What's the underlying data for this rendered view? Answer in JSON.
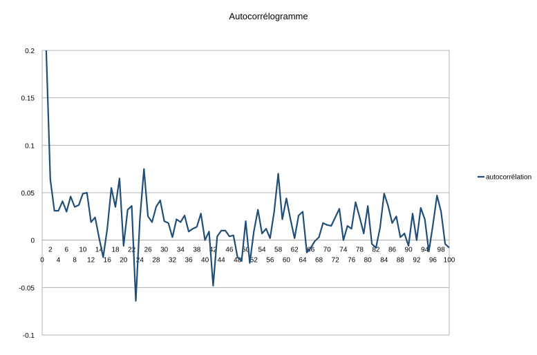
{
  "chart_data": {
    "type": "line",
    "title": "Autocorrélogramme",
    "xlabel": "",
    "ylabel": "",
    "ylim": [
      -0.1,
      0.2
    ],
    "xlim": [
      0,
      100
    ],
    "grid": "horizontal",
    "legend_position": "right",
    "y_ticks": [
      "0.2",
      "0.15",
      "0.1",
      "0.05",
      "0",
      "-0.05",
      "-0.1"
    ],
    "x_ticks": [
      "0",
      "2",
      "4",
      "6",
      "8",
      "10",
      "12",
      "14",
      "16",
      "18",
      "20",
      "22",
      "24",
      "26",
      "28",
      "30",
      "32",
      "34",
      "36",
      "38",
      "40",
      "42",
      "44",
      "46",
      "48",
      "50",
      "52",
      "54",
      "56",
      "58",
      "60",
      "62",
      "64",
      "66",
      "68",
      "70",
      "72",
      "74",
      "76",
      "78",
      "80",
      "82",
      "84",
      "86",
      "88",
      "90",
      "92",
      "94",
      "96",
      "98",
      "100"
    ],
    "series": [
      {
        "name": "autocorrélation",
        "color": "#1f4e79",
        "x": [
          1,
          2,
          3,
          4,
          5,
          6,
          7,
          8,
          9,
          10,
          11,
          12,
          13,
          14,
          15,
          16,
          17,
          18,
          19,
          20,
          21,
          22,
          23,
          24,
          25,
          26,
          27,
          28,
          29,
          30,
          31,
          32,
          33,
          34,
          35,
          36,
          37,
          38,
          39,
          40,
          41,
          42,
          43,
          44,
          45,
          46,
          47,
          48,
          49,
          50,
          51,
          52,
          53,
          54,
          55,
          56,
          57,
          58,
          59,
          60,
          61,
          62,
          63,
          64,
          65,
          66,
          67,
          68,
          69,
          70,
          71,
          72,
          73,
          74,
          75,
          76,
          77,
          78,
          79,
          80,
          81,
          82,
          83,
          84,
          85,
          86,
          87,
          88,
          89,
          90,
          91,
          92,
          93,
          94,
          95,
          96,
          97,
          98,
          99,
          100
        ],
        "values": [
          0.2,
          0.064,
          0.031,
          0.031,
          0.041,
          0.03,
          0.046,
          0.035,
          0.037,
          0.049,
          0.05,
          0.019,
          0.024,
          0.002,
          -0.018,
          0.012,
          0.055,
          0.035,
          0.065,
          -0.006,
          0.032,
          0.036,
          -0.064,
          0.022,
          0.075,
          0.025,
          0.019,
          0.035,
          0.042,
          0.02,
          0.018,
          0.003,
          0.022,
          0.019,
          0.026,
          0.009,
          0.012,
          0.014,
          0.028,
          0.0,
          0.009,
          -0.048,
          0.004,
          0.01,
          0.01,
          0.004,
          0.005,
          -0.018,
          -0.022,
          0.02,
          -0.024,
          0.009,
          0.032,
          0.007,
          0.012,
          0.002,
          0.03,
          0.07,
          0.022,
          0.044,
          0.022,
          0.002,
          0.026,
          0.03,
          -0.013,
          -0.008,
          -0.001,
          0.003,
          0.018,
          0.016,
          0.015,
          0.024,
          0.033,
          0.0,
          0.015,
          0.012,
          0.04,
          0.024,
          0.007,
          0.036,
          -0.004,
          -0.008,
          0.013,
          0.049,
          0.036,
          0.018,
          0.025,
          0.003,
          0.007,
          -0.006,
          0.028,
          0.0,
          0.034,
          0.022,
          -0.012,
          0.016,
          0.047,
          0.03,
          -0.004,
          -0.008
        ]
      }
    ]
  }
}
